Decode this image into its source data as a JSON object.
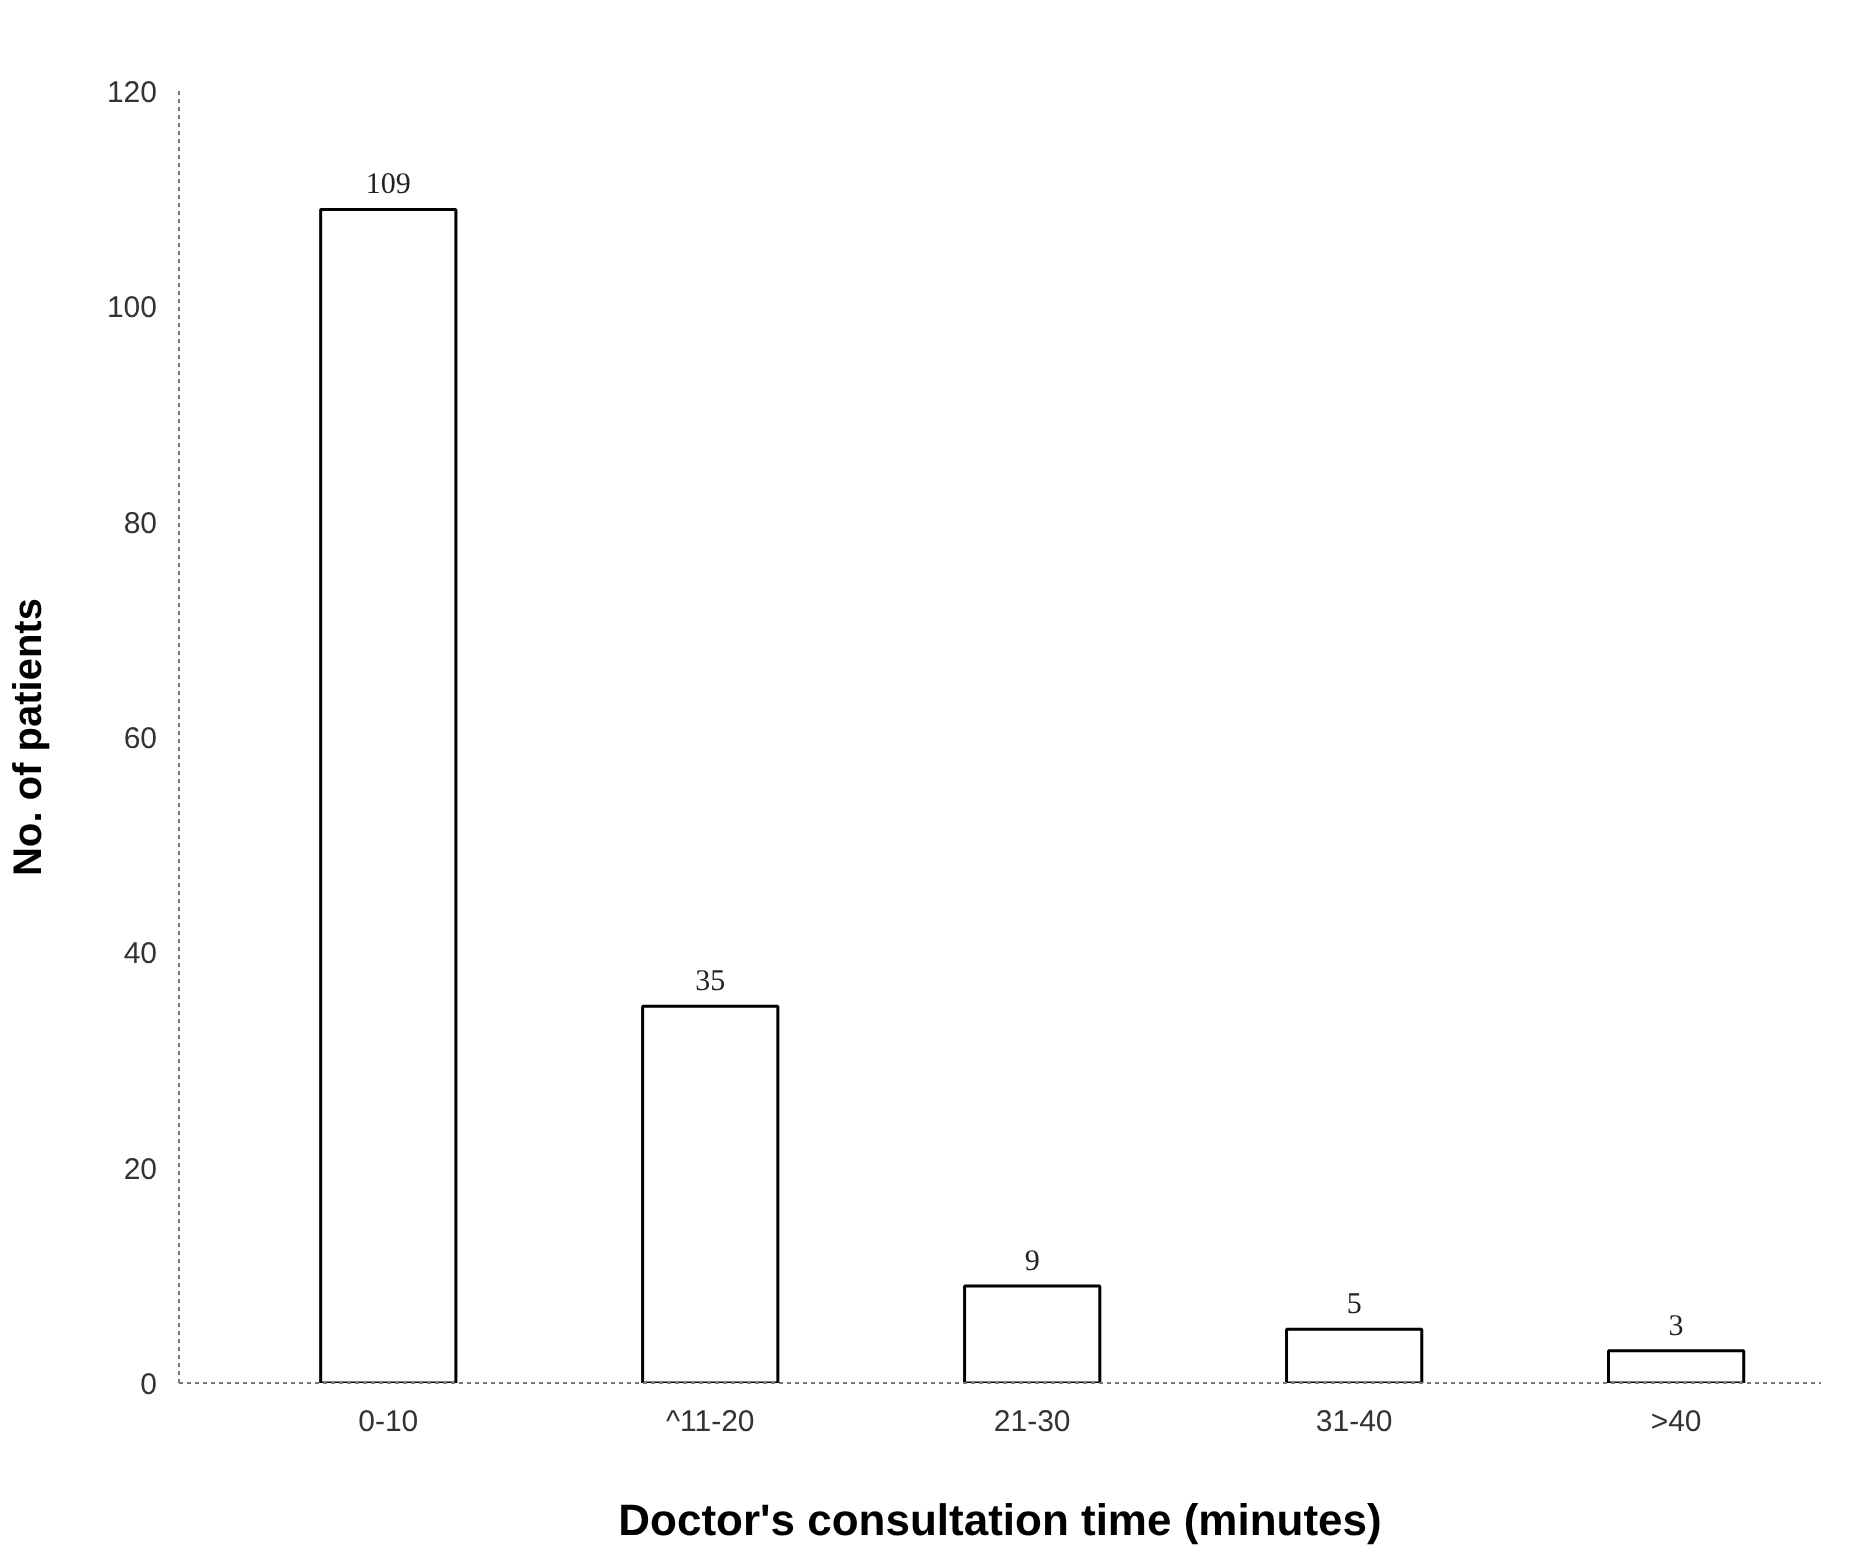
{
  "chart_data": {
    "type": "bar",
    "xlabel": "Doctor's consultation time (minutes)",
    "ylabel": "No. of patients",
    "categories": [
      "0-10",
      "^11-20",
      "21-30",
      "31-40",
      ">40"
    ],
    "values": [
      109,
      35,
      9,
      5,
      3
    ],
    "color": "#ffffff",
    "ylim": [
      0,
      120
    ],
    "yticks": [
      0,
      20,
      40,
      60,
      80,
      100,
      120
    ],
    "grid": false,
    "data_labels": true
  }
}
